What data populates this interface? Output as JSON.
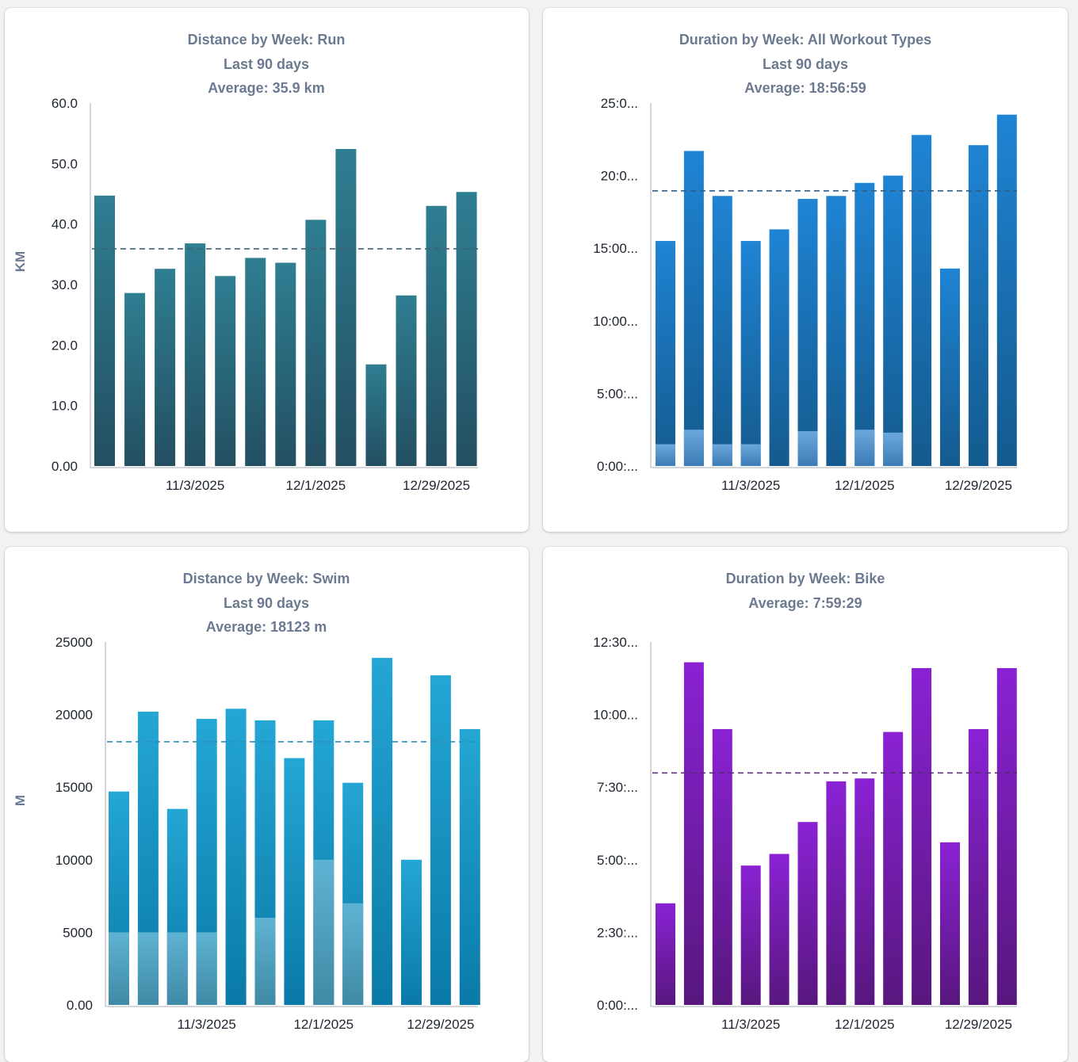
{
  "chart_data": [
    {
      "id": "run",
      "type": "bar",
      "title": [
        "Distance by Week: Run",
        "Last 90 days",
        "Average: 35.9 km"
      ],
      "ylabel": "KM",
      "ylim": [
        0,
        60
      ],
      "yticks": [
        0,
        10,
        20,
        30,
        40,
        50,
        60
      ],
      "ytick_labels": [
        "0.00",
        "10.0",
        "20.0",
        "30.0",
        "40.0",
        "50.0",
        "60.0"
      ],
      "xtick_labels": [
        {
          "index": 3,
          "label": "11/3/2025"
        },
        {
          "index": 7,
          "label": "12/1/2025"
        },
        {
          "index": 11,
          "label": "12/29/2025"
        }
      ],
      "average": 35.9,
      "series": [
        {
          "name": "total",
          "values": [
            44.7,
            28.6,
            32.6,
            36.8,
            31.4,
            34.4,
            33.6,
            40.7,
            52.4,
            16.8,
            28.2,
            43.0,
            45.3
          ]
        }
      ],
      "colors": {
        "top": "#2f7e92",
        "bottom": "#234f61",
        "avg": "#3e6273"
      }
    },
    {
      "id": "all",
      "type": "bar",
      "title": [
        "Duration by Week: All Workout Types",
        "Last 90 days",
        "Average: 18:56:59"
      ],
      "ylabel": "",
      "ylim": [
        0,
        25
      ],
      "yticks": [
        0,
        5,
        10,
        15,
        20,
        25
      ],
      "ytick_labels": [
        "0:00:...",
        "5:00:...",
        "10:00...",
        "15:00...",
        "20:0...",
        "25:0..."
      ],
      "xtick_labels": [
        {
          "index": 3,
          "label": "11/3/2025"
        },
        {
          "index": 7,
          "label": "12/1/2025"
        },
        {
          "index": 11,
          "label": "12/29/2025"
        }
      ],
      "average": 18.95,
      "series": [
        {
          "name": "total",
          "values": [
            15.5,
            21.7,
            18.6,
            15.5,
            16.3,
            18.4,
            18.6,
            19.5,
            20.0,
            22.8,
            13.6,
            22.1,
            24.2
          ]
        },
        {
          "name": "secondary",
          "values": [
            1.5,
            2.5,
            1.5,
            1.5,
            0,
            2.4,
            0,
            2.5,
            2.3,
            0,
            0,
            0,
            0
          ]
        }
      ],
      "colors": {
        "top": "#1f84d4",
        "bottom": "#145a8e",
        "sec_top": "#6aa8dc",
        "sec_bottom": "#3d7bb6",
        "avg": "#2f5f87"
      }
    },
    {
      "id": "swim",
      "type": "bar",
      "title": [
        "Distance by Week: Swim",
        "Last 90 days",
        "Average: 18123 m"
      ],
      "ylabel": "M",
      "ylim": [
        0,
        25000
      ],
      "yticks": [
        0,
        5000,
        10000,
        15000,
        20000,
        25000
      ],
      "ytick_labels": [
        "0.00",
        "5000",
        "10000",
        "15000",
        "20000",
        "25000"
      ],
      "xtick_labels": [
        {
          "index": 3,
          "label": "11/3/2025"
        },
        {
          "index": 7,
          "label": "12/1/2025"
        },
        {
          "index": 11,
          "label": "12/29/2025"
        }
      ],
      "average": 18123,
      "series": [
        {
          "name": "total",
          "values": [
            14700,
            20200,
            13500,
            19700,
            20400,
            19600,
            17000,
            19600,
            15300,
            23900,
            10000,
            22700,
            19000
          ]
        },
        {
          "name": "secondary",
          "values": [
            5000,
            5000,
            5000,
            5000,
            0,
            6000,
            0,
            10000,
            7000,
            0,
            0,
            0,
            0
          ]
        }
      ],
      "colors": {
        "top": "#24a6d4",
        "bottom": "#0a7aa8",
        "sec_top": "#5fb3d2",
        "sec_bottom": "#3f8aa6",
        "avg": "#2d8eb8"
      }
    },
    {
      "id": "bike",
      "type": "bar",
      "title": [
        "Duration by Week: Bike",
        "Average: 7:59:29"
      ],
      "ylabel": "",
      "ylim": [
        0,
        12.5
      ],
      "yticks": [
        0,
        2.5,
        5,
        7.5,
        10,
        12.5
      ],
      "ytick_labels": [
        "0:00:...",
        "2:30:...",
        "5:00:...",
        "7:30:...",
        "10:00...",
        "12:30..."
      ],
      "xtick_labels": [
        {
          "index": 3,
          "label": "11/3/2025"
        },
        {
          "index": 7,
          "label": "12/1/2025"
        },
        {
          "index": 11,
          "label": "12/29/2025"
        }
      ],
      "average": 7.99,
      "series": [
        {
          "name": "total",
          "values": [
            3.5,
            11.8,
            9.5,
            4.8,
            5.2,
            6.3,
            7.7,
            7.8,
            9.4,
            11.6,
            5.6,
            9.5,
            11.6
          ]
        }
      ],
      "colors": {
        "top": "#8a22d4",
        "bottom": "#58177e",
        "avg": "#5a2a78"
      }
    }
  ]
}
